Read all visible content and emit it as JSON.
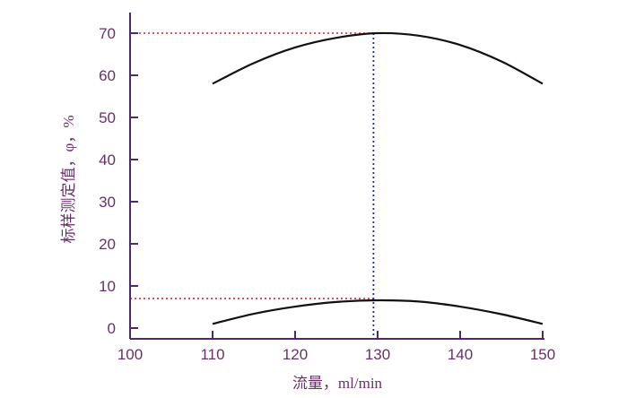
{
  "chart_data": {
    "type": "line",
    "title": "",
    "xlabel": "流量，ml/min",
    "ylabel": "标样测定值，φ，%",
    "xlim": [
      100,
      150
    ],
    "ylim": [
      0,
      75
    ],
    "x_ticks": [
      100,
      110,
      120,
      130,
      140,
      150
    ],
    "y_ticks": [
      0,
      10,
      20,
      30,
      40,
      50,
      60,
      70
    ],
    "grid": false,
    "series": [
      {
        "x": [
          110,
          115,
          120,
          125,
          130,
          135,
          140,
          145,
          150
        ],
        "values": [
          58.0,
          62.9,
          66.6,
          68.9,
          70.0,
          69.4,
          67.2,
          63.3,
          58.0
        ]
      },
      {
        "x": [
          110,
          115,
          120,
          125,
          130,
          135,
          140,
          145,
          150
        ],
        "values": [
          1.0,
          3.4,
          5.1,
          6.2,
          6.6,
          6.3,
          5.1,
          3.3,
          1.0
        ]
      }
    ],
    "reference_lines": {
      "horizontal": [
        70,
        7
      ],
      "vertical": [
        129.5
      ]
    }
  }
}
